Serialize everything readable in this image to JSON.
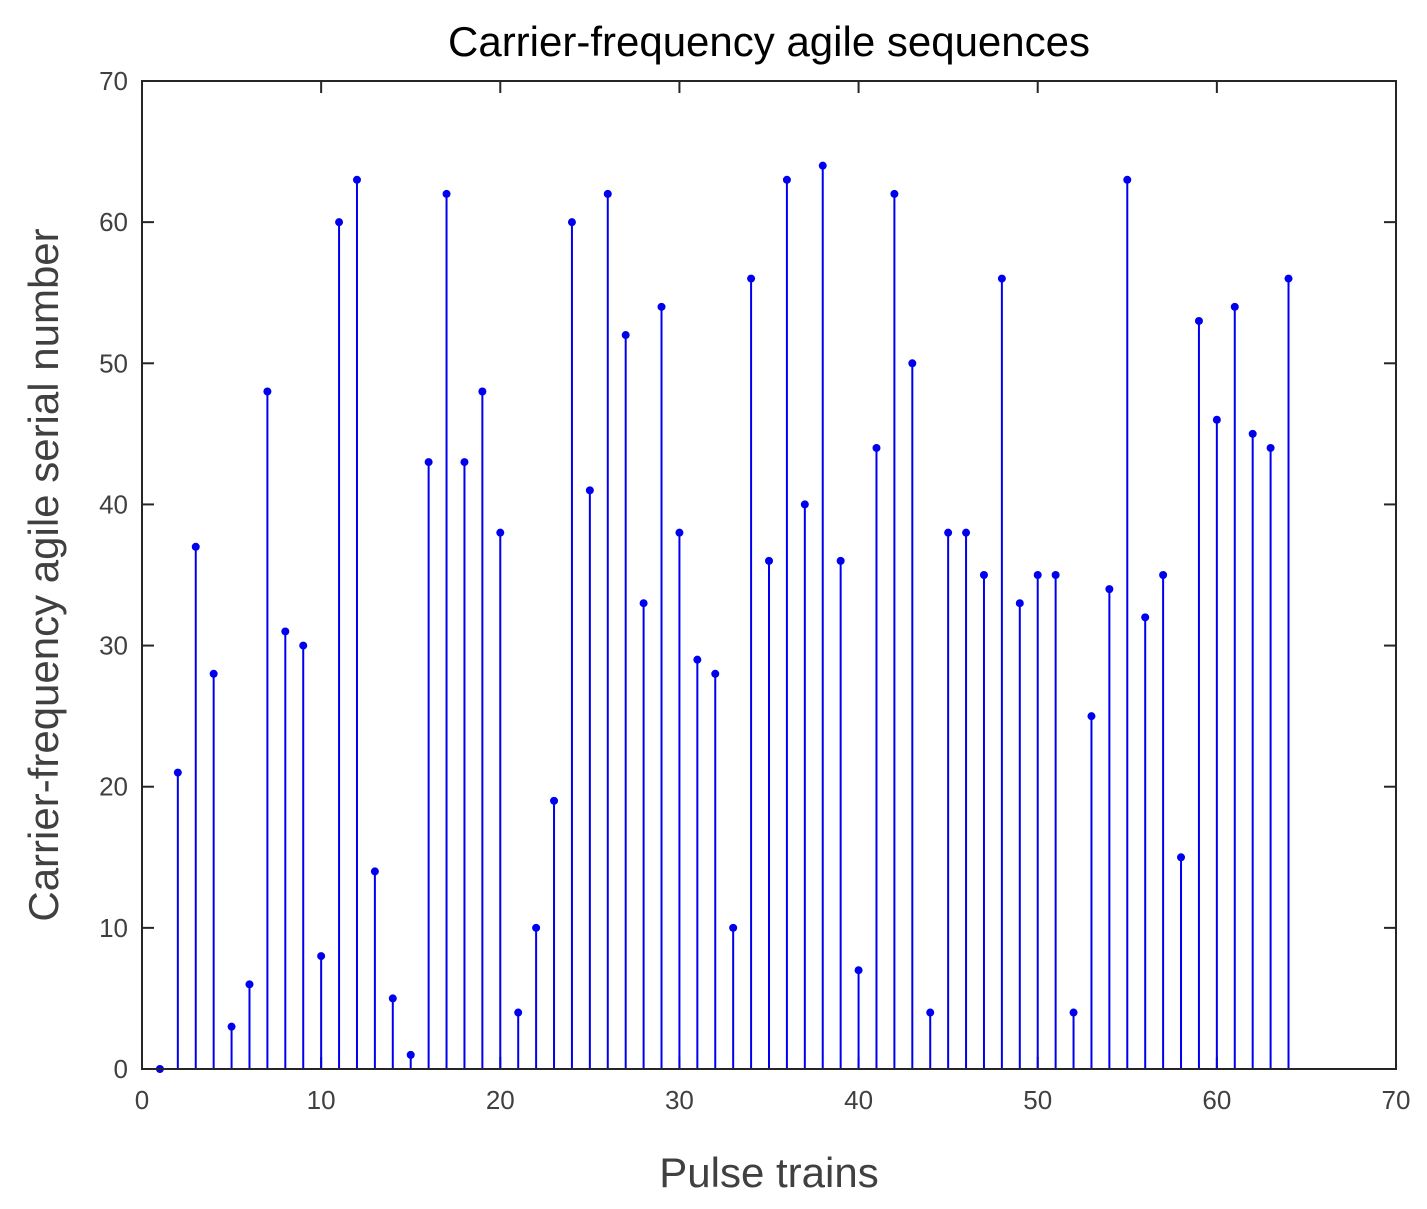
{
  "chart_data": {
    "type": "stem",
    "title": "Carrier-frequency agile sequences",
    "xlabel": "Pulse trains",
    "ylabel": "Carrier-frequency agile serial number",
    "xlim": [
      0,
      70
    ],
    "ylim": [
      0,
      70
    ],
    "xticks": [
      0,
      10,
      20,
      30,
      40,
      50,
      60,
      70
    ],
    "yticks": [
      0,
      10,
      20,
      30,
      40,
      50,
      60,
      70
    ],
    "grid": false,
    "color": "#0000ee",
    "x": [
      1,
      2,
      3,
      4,
      5,
      6,
      7,
      8,
      9,
      10,
      11,
      12,
      13,
      14,
      15,
      16,
      17,
      18,
      19,
      20,
      21,
      22,
      23,
      24,
      25,
      26,
      27,
      28,
      29,
      30,
      31,
      32,
      33,
      34,
      35,
      36,
      37,
      38,
      39,
      40,
      41,
      42,
      43,
      44,
      45,
      46,
      47,
      48,
      49,
      50,
      51,
      52,
      53,
      54,
      55,
      56,
      57,
      58,
      59,
      60,
      61,
      62,
      63,
      64
    ],
    "values": [
      0,
      21,
      37,
      28,
      3,
      6,
      48,
      31,
      30,
      8,
      60,
      63,
      14,
      5,
      1,
      43,
      62,
      43,
      48,
      38,
      4,
      10,
      19,
      60,
      41,
      62,
      52,
      33,
      54,
      38,
      29,
      28,
      10,
      56,
      36,
      63,
      40,
      64,
      36,
      7,
      44,
      62,
      50,
      4,
      38,
      38,
      35,
      56,
      33,
      35,
      35,
      4,
      25,
      34,
      63,
      32,
      35,
      15,
      53,
      46,
      54,
      45,
      44,
      56
    ]
  }
}
